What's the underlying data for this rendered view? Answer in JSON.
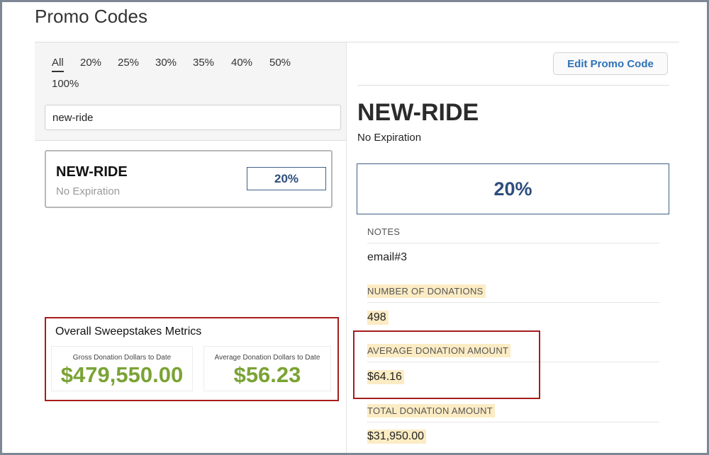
{
  "page": {
    "title": "Promo Codes"
  },
  "filters": {
    "tabs": [
      "All",
      "20%",
      "25%",
      "30%",
      "35%",
      "40%",
      "50%",
      "100%"
    ],
    "active": "All"
  },
  "search": {
    "value": "new-ride",
    "placeholder": ""
  },
  "promo_list": [
    {
      "code": "NEW-RIDE",
      "expiration": "No Expiration",
      "discount": "20%"
    }
  ],
  "metrics": {
    "title": "Overall Sweepstakes Metrics",
    "gross_label": "Gross Donation Dollars to Date",
    "gross_value": "$479,550.00",
    "average_label": "Average Donation Dollars to Date",
    "average_value": "$56.23",
    "value_color": "#7aa335",
    "annotation_color": "#a61c1c"
  },
  "detail": {
    "edit_label": "Edit Promo Code",
    "code": "NEW-RIDE",
    "expiration": "No Expiration",
    "discount": "20%",
    "notes_label": "NOTES",
    "notes_value": "email#3",
    "donations_label": "NUMBER OF DONATIONS",
    "donations_value": "498",
    "avg_label": "AVERAGE DONATION AMOUNT",
    "avg_value": "$64.16",
    "total_label": "TOTAL DONATION AMOUNT",
    "total_value": "$31,950.00",
    "highlight_color": "#fcecc4",
    "accent_color": "#2e72b8",
    "badge_color": "#2d4d7c"
  }
}
